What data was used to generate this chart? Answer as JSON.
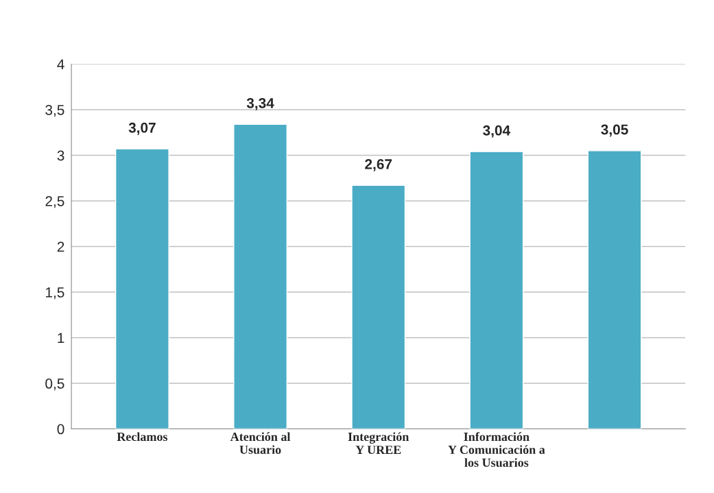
{
  "chart_data": {
    "type": "bar",
    "categories": [
      "Reclamos",
      "Atención al\nUsuario",
      "Integración\nY UREE",
      "Información\nY Comunicación a\nlos Usuarios",
      null
    ],
    "values": [
      3.07,
      3.34,
      2.67,
      3.04,
      3.05
    ],
    "value_labels": [
      "3,07",
      "3,34",
      "2,67",
      "3,04",
      "3,05"
    ],
    "color": "#4bacc6",
    "ylim": [
      0,
      4
    ],
    "yticks": [
      0,
      {
        "value": 0.5,
        "label": "0,5"
      },
      1,
      {
        "value": 1.5,
        "label": "1,5"
      },
      2,
      {
        "value": 2.5,
        "label": "2,5"
      },
      3,
      {
        "value": 3.5,
        "label": "3,5"
      },
      4
    ],
    "grid": "y",
    "legend": false
  }
}
